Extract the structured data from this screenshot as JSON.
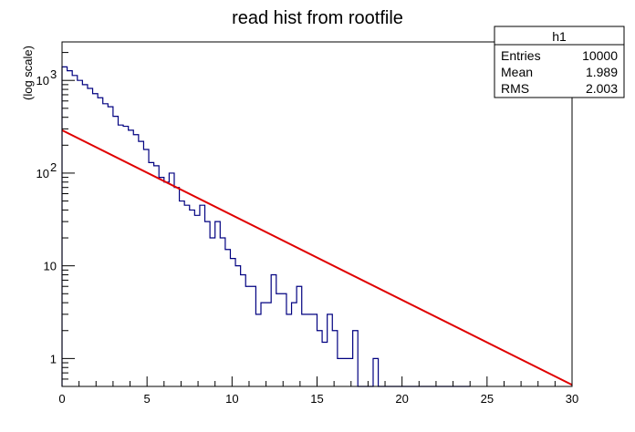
{
  "chart_data": {
    "type": "step",
    "title": "read hist from rootfile",
    "xlabel": "",
    "ylabel": "(log scale)",
    "xlim": [
      0,
      30
    ],
    "ylim": [
      0.5,
      2600
    ],
    "yscale": "log",
    "x_ticks": [
      0,
      5,
      10,
      15,
      20,
      25,
      30
    ],
    "y_ticks": [
      {
        "value": 1,
        "label": "1"
      },
      {
        "value": 10,
        "label": "10"
      },
      {
        "value": 100,
        "label": "10",
        "exp": "2"
      },
      {
        "value": 1000,
        "label": "10",
        "exp": "3"
      }
    ],
    "grid": false,
    "stats_box": {
      "name": "h1",
      "rows": [
        {
          "label": "Entries",
          "value": "10000"
        },
        {
          "label": "Mean",
          "value": "1.989"
        },
        {
          "label": "RMS",
          "value": "2.003"
        }
      ],
      "placement": "top-right"
    },
    "series": [
      {
        "kind": "histogram",
        "color": "#000080",
        "bin_width": 0.3,
        "bin_edges_start": 0,
        "values": [
          1400,
          1270,
          1130,
          1000,
          900,
          820,
          720,
          650,
          560,
          520,
          410,
          330,
          320,
          290,
          260,
          220,
          180,
          130,
          120,
          90,
          80,
          100,
          70,
          50,
          45,
          40,
          35,
          45,
          30,
          20,
          30,
          20,
          15,
          12,
          10,
          8,
          6,
          6,
          3,
          4,
          4,
          8,
          5,
          5,
          3,
          4,
          6,
          3,
          3,
          3,
          2,
          1.5,
          3,
          2,
          1,
          1,
          1,
          2,
          0,
          0,
          0,
          1,
          0,
          0,
          0,
          0,
          0,
          0,
          0,
          0,
          0,
          0,
          0,
          0,
          0,
          0,
          0,
          0,
          0,
          0
        ]
      },
      {
        "kind": "function",
        "color": "#e00000",
        "x": [
          0,
          30
        ],
        "y": [
          290,
          0.52
        ]
      }
    ]
  }
}
